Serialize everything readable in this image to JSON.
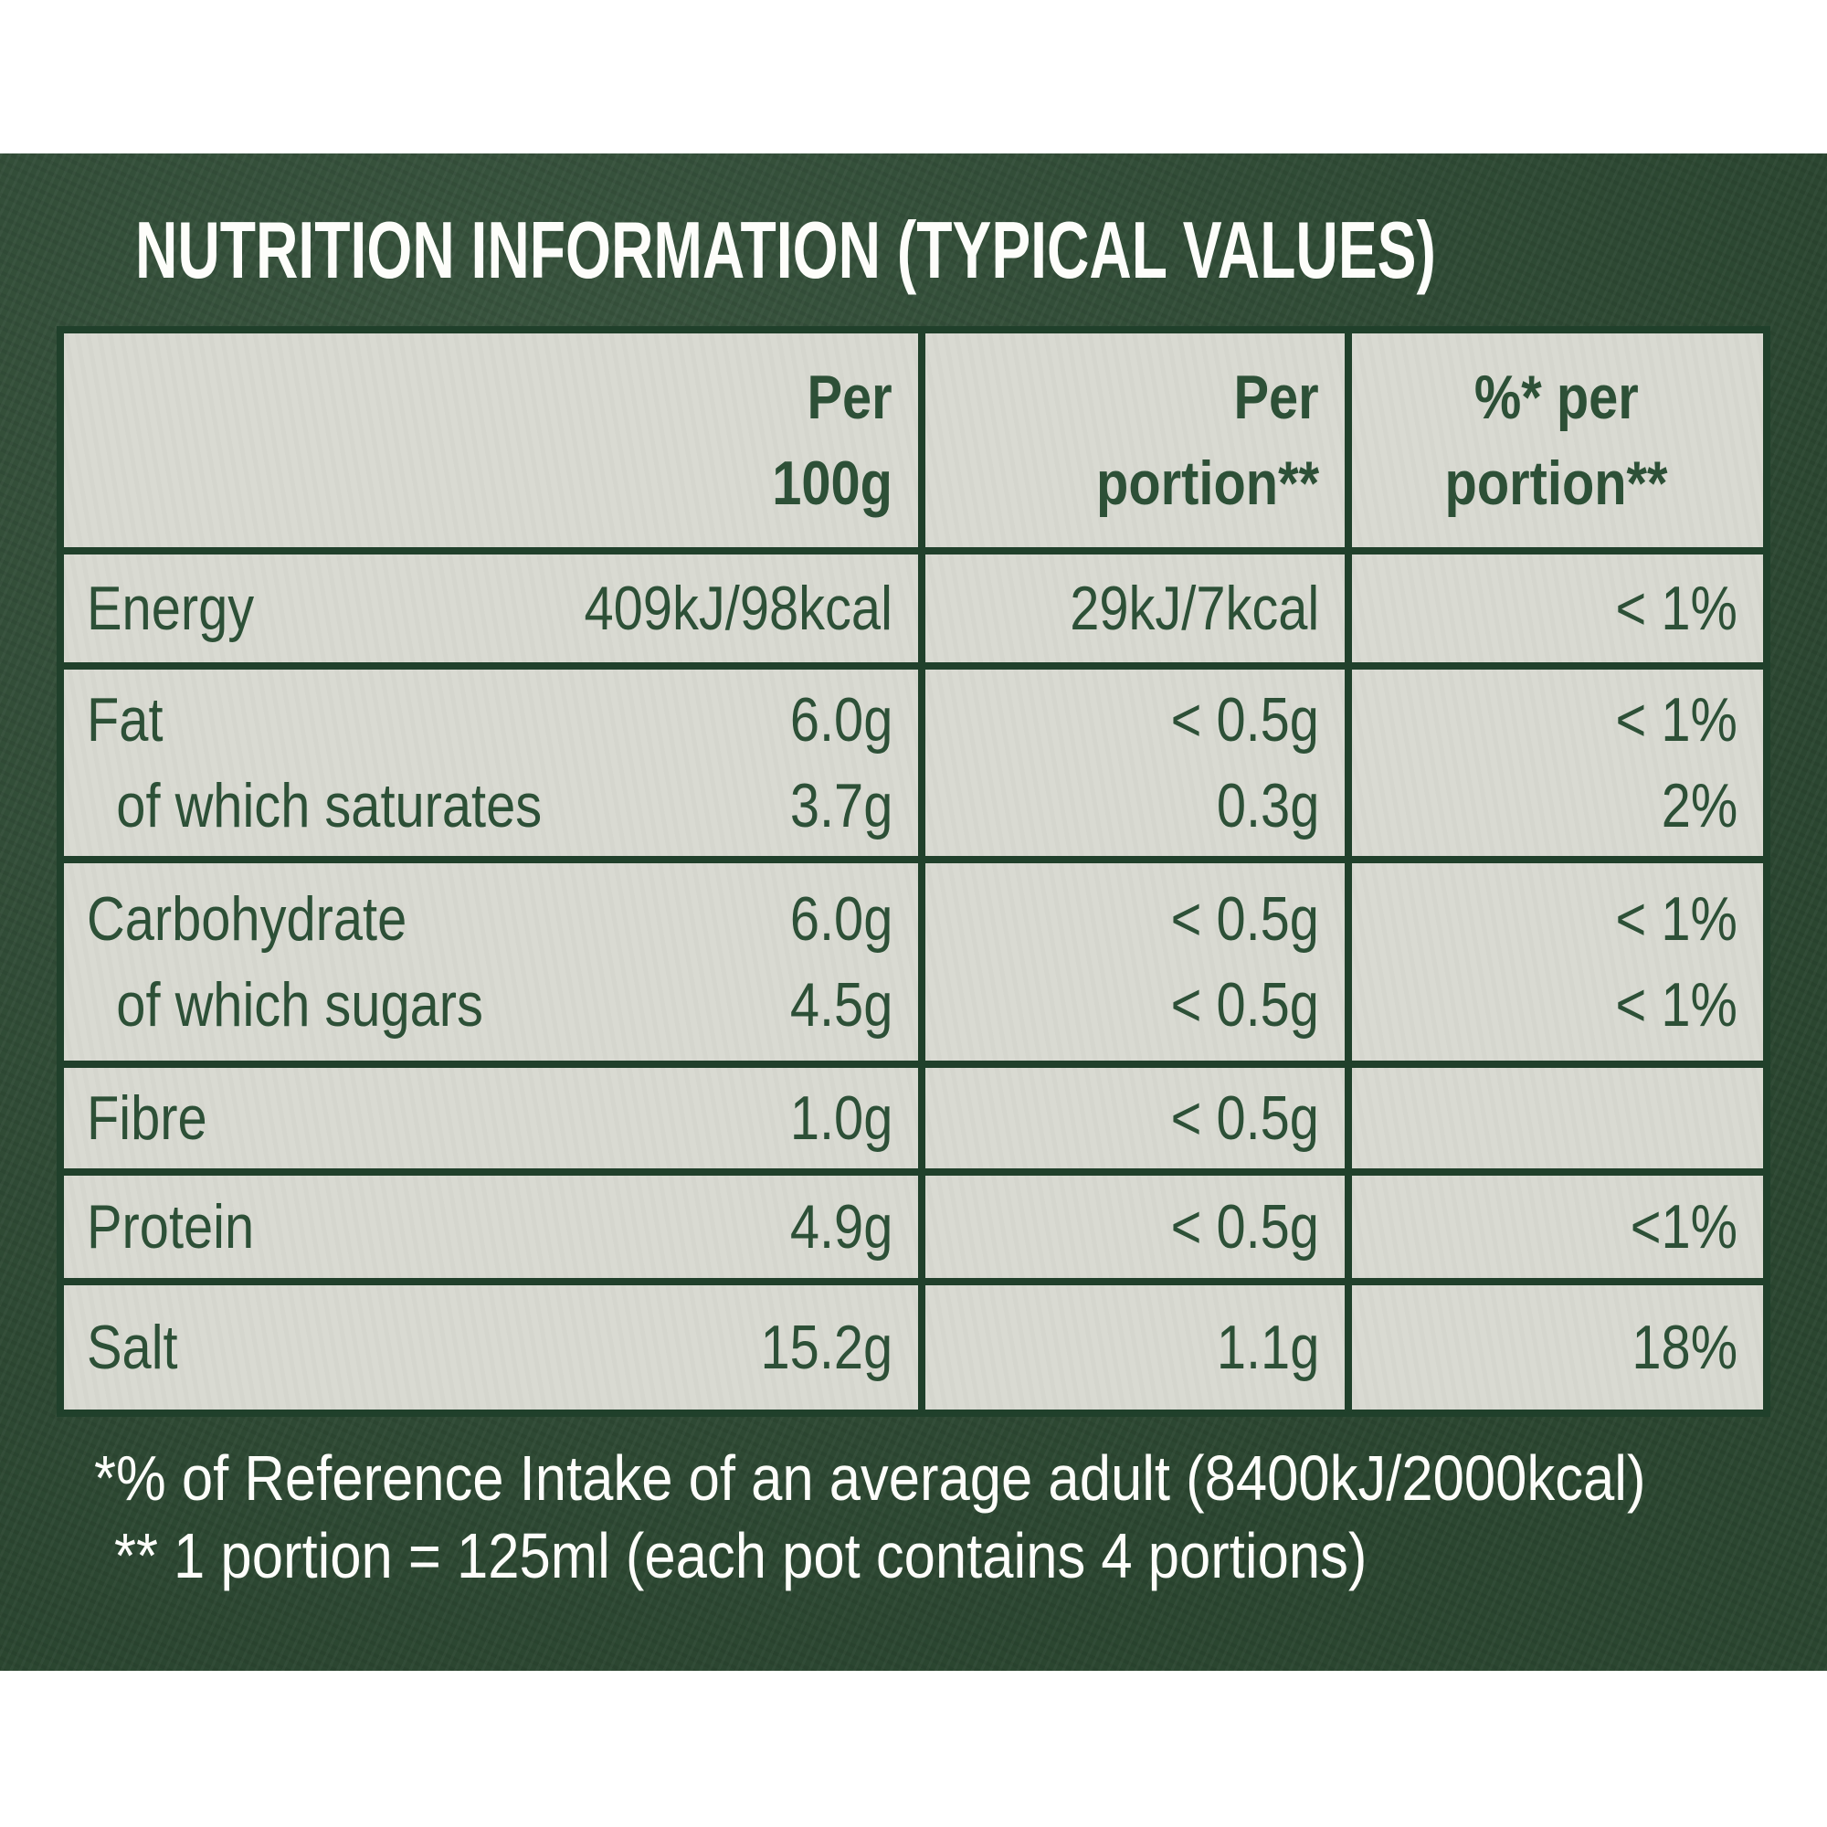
{
  "title": "NUTRITION INFORMATION (TYPICAL VALUES)",
  "colors": {
    "panel_green": "#2e4b34",
    "table_background": "#d8d9d1",
    "table_border_green": "#20402b",
    "table_text_green": "#2d5037",
    "title_text": "#fdfdfa"
  },
  "table": {
    "header": {
      "c1l1": "Per",
      "c1l2": "100g",
      "c2l1": "Per",
      "c2l2": "portion**",
      "c3l1": "%* per",
      "c3l2": "portion**"
    },
    "rows": [
      {
        "name": "energy",
        "lines": [
          {
            "label": "Energy",
            "per100": "409kJ/98kcal",
            "portion": "29kJ/7kcal",
            "pct": "< 1%"
          }
        ]
      },
      {
        "name": "fat",
        "lines": [
          {
            "label": "Fat",
            "per100": "6.0g",
            "portion": "< 0.5g",
            "pct": "< 1%"
          },
          {
            "label": "of which saturates",
            "per100": "3.7g",
            "portion": "0.3g",
            "pct": "2%"
          }
        ]
      },
      {
        "name": "carbohydrate",
        "lines": [
          {
            "label": "Carbohydrate",
            "per100": "6.0g",
            "portion": "< 0.5g",
            "pct": "< 1%"
          },
          {
            "label": "of which sugars",
            "per100": "4.5g",
            "portion": "< 0.5g",
            "pct": "< 1%"
          }
        ]
      },
      {
        "name": "fibre",
        "lines": [
          {
            "label": "Fibre",
            "per100": "1.0g",
            "portion": "< 0.5g",
            "pct": ""
          }
        ]
      },
      {
        "name": "protein",
        "lines": [
          {
            "label": "Protein",
            "per100": "4.9g",
            "portion": "< 0.5g",
            "pct": "<1%"
          }
        ]
      },
      {
        "name": "salt",
        "lines": [
          {
            "label": "Salt",
            "per100": "15.2g",
            "portion": "1.1g",
            "pct": "18%"
          }
        ]
      }
    ]
  },
  "footnotes": [
    "*% of Reference Intake of an average adult (8400kJ/2000kcal)",
    "** 1 portion = 125ml (each pot contains 4 portions)"
  ]
}
